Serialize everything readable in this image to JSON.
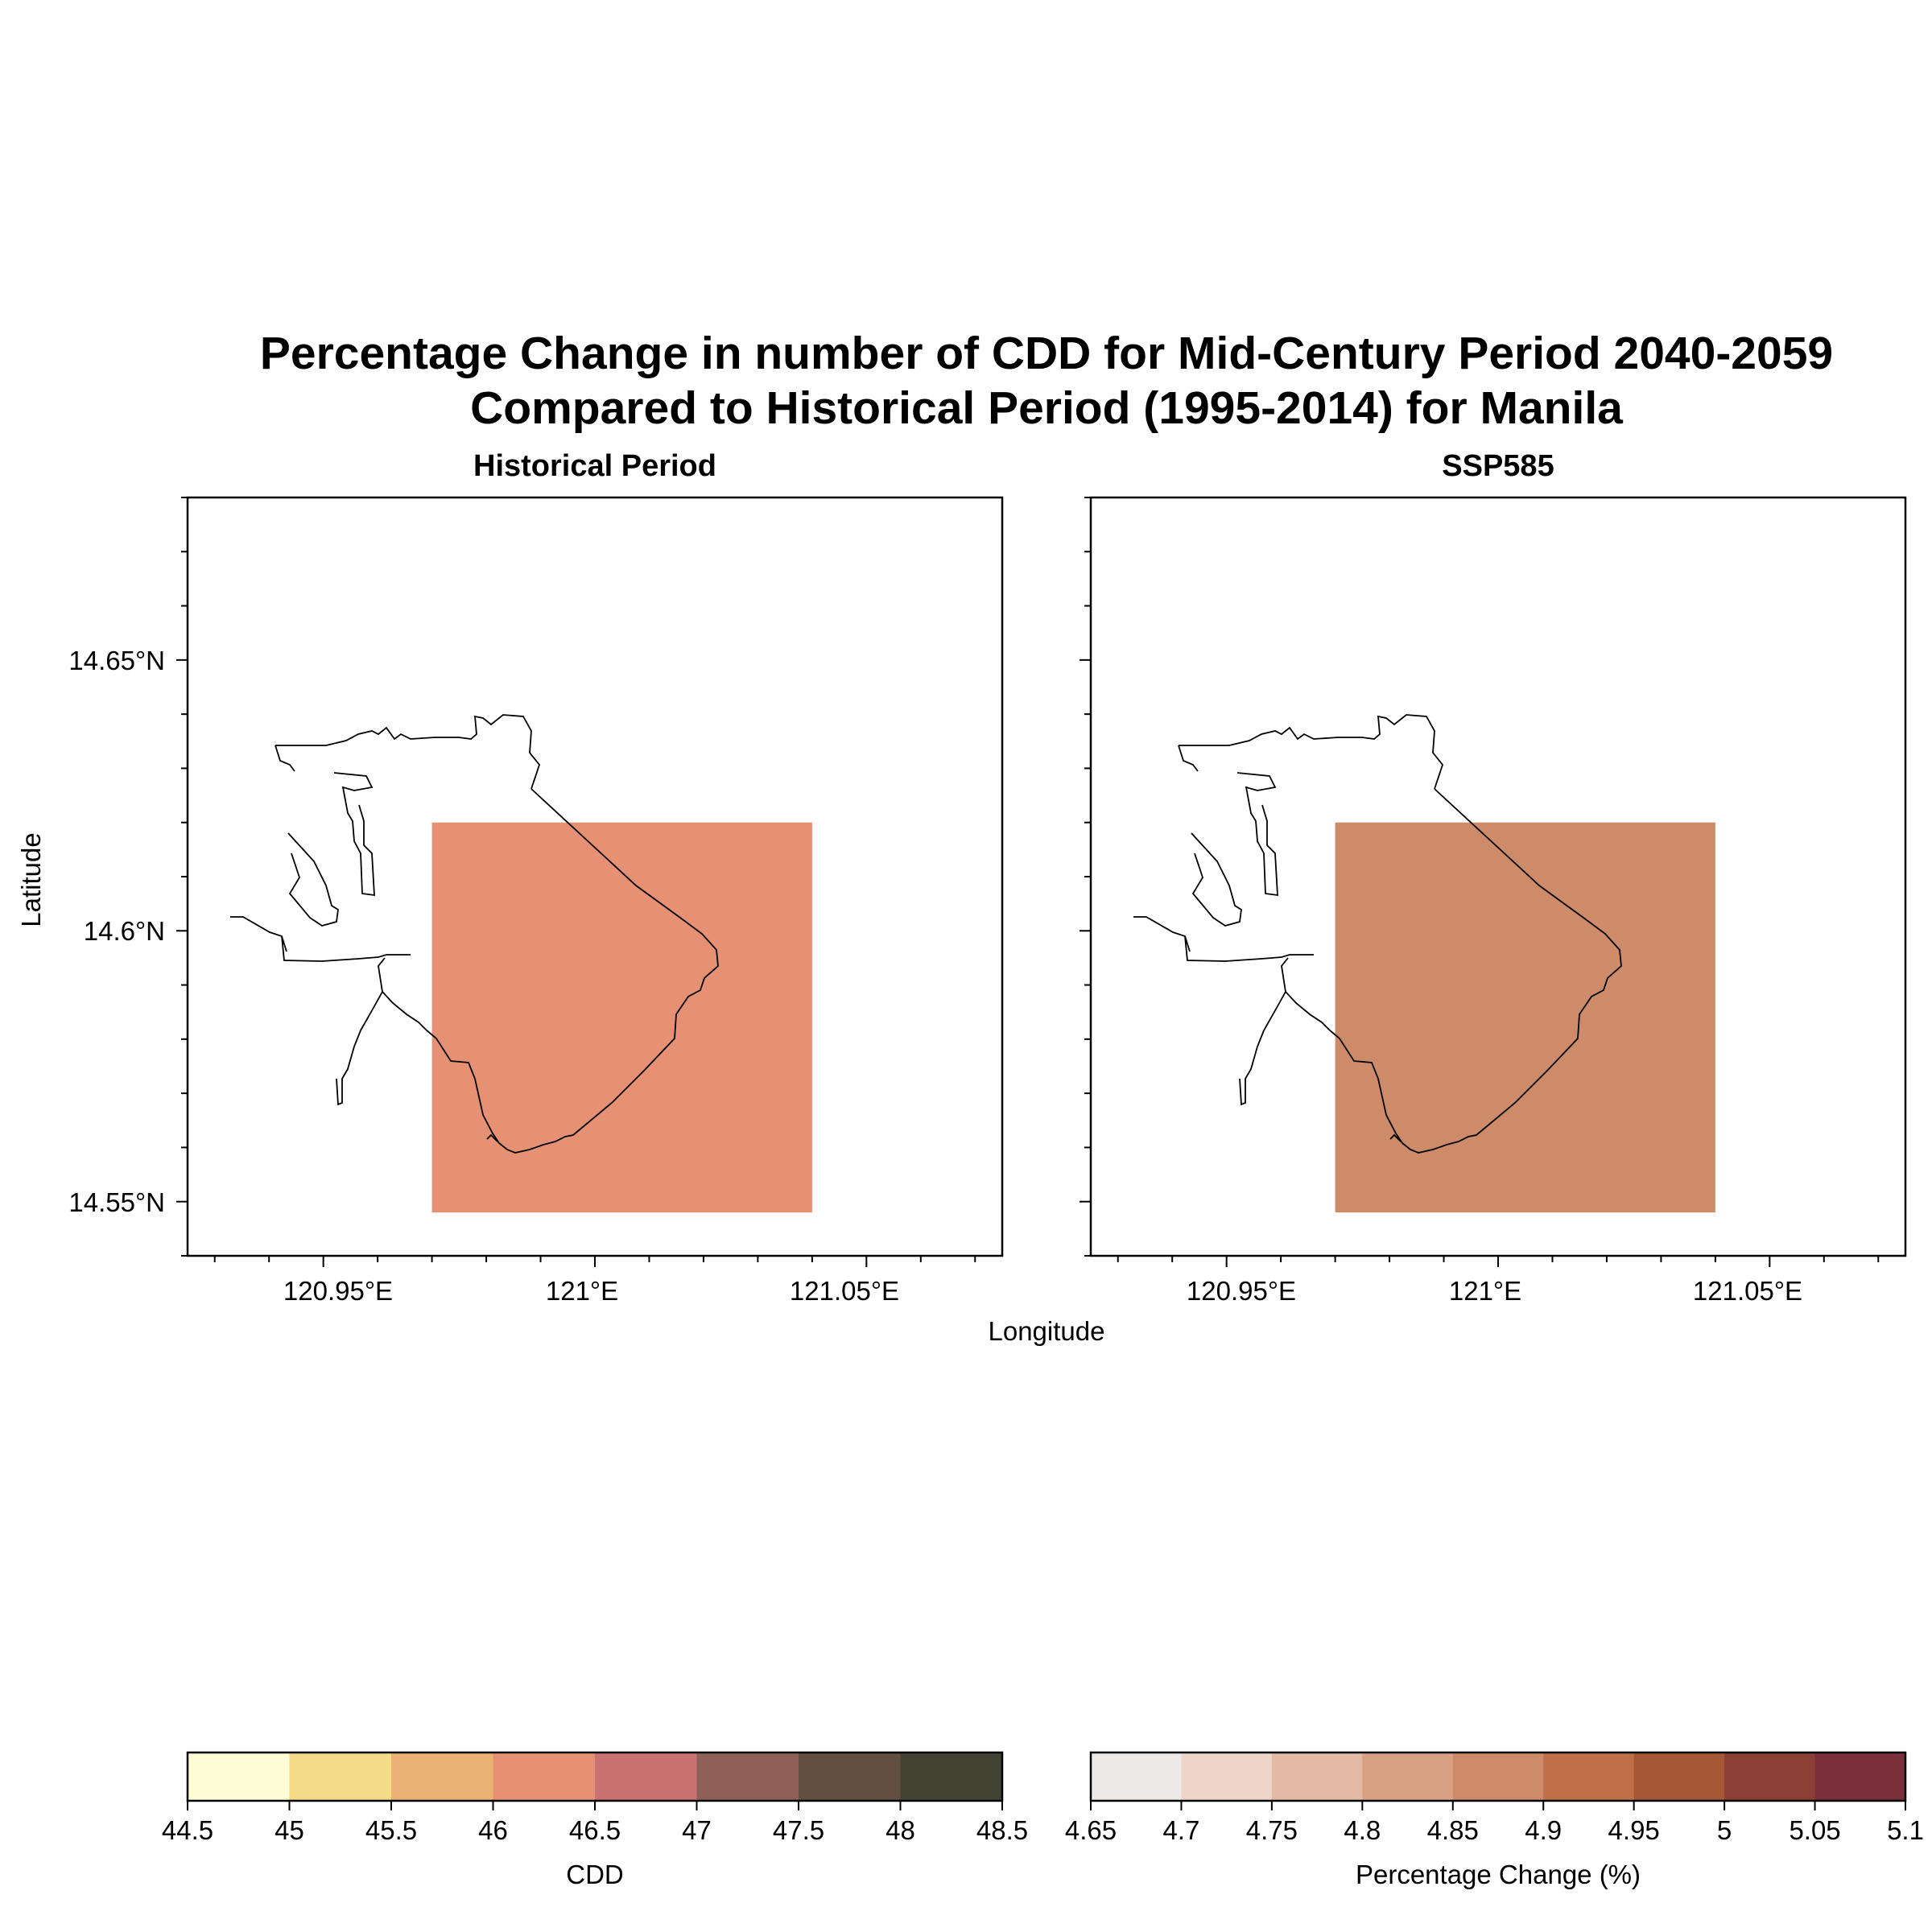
{
  "title_line1": "Percentage Change in number of CDD for Mid-Century Period 2040-2059",
  "title_line2": "Compared to Historical Period (1995-2014) for Manila",
  "panels": [
    {
      "subtitle": "Historical Period",
      "fill_color": "#e69173",
      "value_units": "CDD",
      "value_range": [
        46.0,
        46.5
      ]
    },
    {
      "subtitle": "SSP585",
      "fill_color": "#cd8b69",
      "value_units": "Percentage Change (%)",
      "value_range": [
        4.85,
        4.9
      ]
    }
  ],
  "axes": {
    "xlabel": "Longitude",
    "ylabel": "Latitude",
    "x_ticks": [
      "120.95°E",
      "121°E",
      "121.05°E"
    ],
    "y_ticks": [
      "14.65°N",
      "14.6°N",
      "14.55°N"
    ],
    "xlim": [
      120.925,
      121.075
    ],
    "ylim": [
      14.54,
      14.68
    ]
  },
  "grid_cell": {
    "lon": [
      120.97,
      121.04
    ],
    "lat": [
      14.548,
      14.62
    ]
  },
  "colorbars": [
    {
      "label": "CDD",
      "tick_labels": [
        "44.5",
        "45",
        "45.5",
        "46",
        "46.5",
        "47",
        "47.5",
        "48",
        "48.5"
      ],
      "colors": [
        "#fefdd5",
        "#f5da88",
        "#ecb274",
        "#e69173",
        "#ca7172",
        "#8f6058",
        "#624f42",
        "#424232"
      ]
    },
    {
      "label": "Percentage Change (%)",
      "tick_labels": [
        "4.65",
        "4.7",
        "4.75",
        "4.8",
        "4.85",
        "4.9",
        "4.95",
        "5",
        "5.05",
        "5.1"
      ],
      "colors": [
        "#ede9e6",
        "#edd6c9",
        "#e2b9a2",
        "#d8a184",
        "#cd8b69",
        "#bf7049",
        "#a65736",
        "#8c3f34",
        "#7a2f3a"
      ]
    }
  ]
}
